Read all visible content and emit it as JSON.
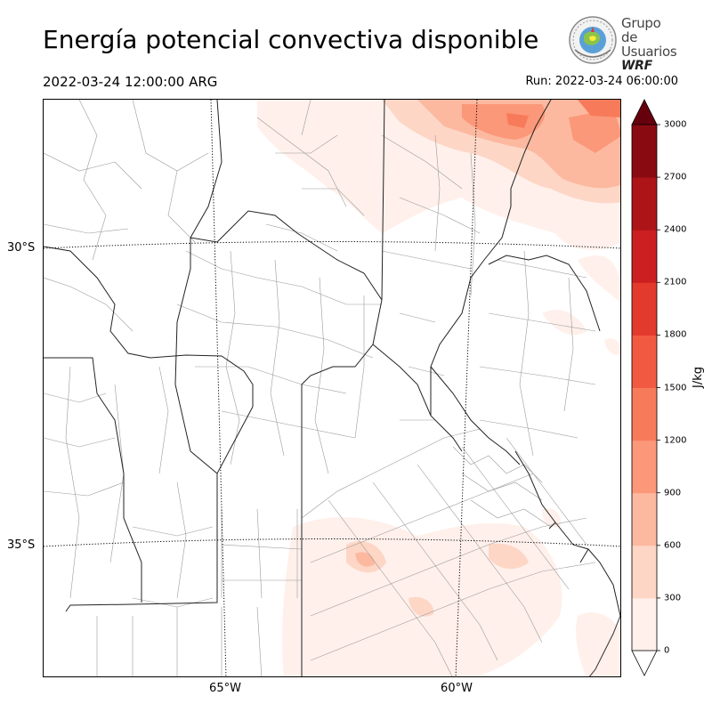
{
  "title": "Energía potencial convectiva disponible",
  "valid_time": "2022-03-24 12:00:00 ARG",
  "run_time": "Run: 2022-03-24 06:00:00",
  "logo": {
    "line1": "Grupo de",
    "line2": "Usuarios",
    "line3": "WRF"
  },
  "lat_labels": [
    "30°S",
    "35°S"
  ],
  "lon_labels": [
    "65°W",
    "60°W"
  ],
  "colorbar": {
    "unit": "J/kg",
    "ticks": [
      "0",
      "300",
      "600",
      "900",
      "1200",
      "1500",
      "1800",
      "2100",
      "2400",
      "2700",
      "3000"
    ],
    "levels": [
      0,
      300,
      600,
      900,
      1200,
      1500,
      1800,
      2100,
      2400,
      2700,
      3000
    ],
    "colors": [
      "#fff0eb",
      "#fdd6c6",
      "#fcb9a0",
      "#fb9879",
      "#f77b5a",
      "#f15a40",
      "#e23a2c",
      "#cb1f21",
      "#ad1418",
      "#8a0a12"
    ],
    "over_color": "#67000d",
    "under_color": "#ffffff"
  }
}
